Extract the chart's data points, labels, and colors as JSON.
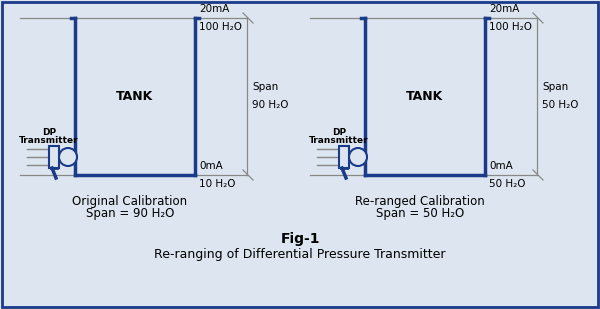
{
  "bg_color": "#dde6f0",
  "border_color": "#1a3a8a",
  "blue": "#1a3a8a",
  "gray": "#888888",
  "fig_title": "Fig-1",
  "fig_subtitle": "Re-ranging of Differential Pressure Transmitter",
  "left_caption1": "Original Calibration",
  "left_caption2": "Span = 90 H₂O",
  "right_caption1": "Re-ranged Calibration",
  "right_caption2": "Span = 50 H₂O",
  "tank_label": "TANK",
  "dp_label_line1": "DP",
  "dp_label_line2": "Transmitter",
  "left": {
    "top_ma": "20mA",
    "top_h2o": "100 H₂O",
    "bot_ma": "0mA",
    "bot_h2o": "10 H₂O",
    "span_line1": "Span",
    "span_line2": "90 H₂O"
  },
  "right": {
    "top_ma": "20mA",
    "top_h2o": "100 H₂O",
    "bot_ma": "0mA",
    "bot_h2o": "50 H₂O",
    "span_line1": "Span",
    "span_line2": "50 H₂O"
  }
}
